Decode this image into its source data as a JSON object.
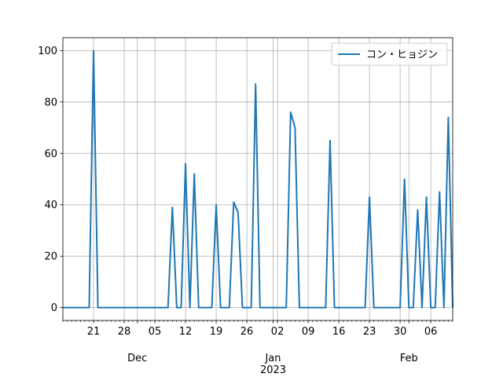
{
  "chart_data": {
    "type": "line",
    "title": "",
    "xlabel": "",
    "ylabel": "",
    "ylim": [
      -5,
      105
    ],
    "xlim": [
      "2022-11-14",
      "2023-02-11"
    ],
    "grid": true,
    "legend_position": "upper right",
    "y_ticks": [
      "0",
      "20",
      "40",
      "60",
      "80",
      "100"
    ],
    "x_tick_labels": [
      {
        "date": "2022-11-21",
        "label": "21"
      },
      {
        "date": "2022-11-28",
        "label": "28"
      },
      {
        "date": "2022-12-05",
        "label": "05"
      },
      {
        "date": "2022-12-12",
        "label": "12"
      },
      {
        "date": "2022-12-19",
        "label": "19"
      },
      {
        "date": "2022-12-26",
        "label": "26"
      },
      {
        "date": "2023-01-02",
        "label": "02"
      },
      {
        "date": "2023-01-09",
        "label": "09"
      },
      {
        "date": "2023-01-16",
        "label": "16"
      },
      {
        "date": "2023-01-23",
        "label": "23"
      },
      {
        "date": "2023-01-30",
        "label": "30"
      },
      {
        "date": "2023-02-06",
        "label": "06"
      }
    ],
    "month_labels": [
      {
        "date": "2022-12-01",
        "label": "Dec"
      },
      {
        "date": "2023-01-01",
        "label": "Jan"
      },
      {
        "date": "2023-02-01",
        "label": "Feb"
      }
    ],
    "year_labels": [
      {
        "date": "2023-01-01",
        "label": "2023"
      }
    ],
    "series": [
      {
        "name": "コン・ヒョジン",
        "color": "#1f77b4",
        "points": [
          [
            "2022-11-14",
            0
          ],
          [
            "2022-11-20",
            0
          ],
          [
            "2022-11-21",
            100
          ],
          [
            "2022-11-22",
            0
          ],
          [
            "2022-12-08",
            0
          ],
          [
            "2022-12-09",
            39
          ],
          [
            "2022-12-10",
            0
          ],
          [
            "2022-12-11",
            0
          ],
          [
            "2022-12-12",
            56
          ],
          [
            "2022-12-13",
            0
          ],
          [
            "2022-12-14",
            52
          ],
          [
            "2022-12-15",
            0
          ],
          [
            "2022-12-18",
            0
          ],
          [
            "2022-12-19",
            40
          ],
          [
            "2022-12-20",
            0
          ],
          [
            "2022-12-22",
            0
          ],
          [
            "2022-12-23",
            41
          ],
          [
            "2022-12-24",
            37
          ],
          [
            "2022-12-25",
            0
          ],
          [
            "2022-12-27",
            0
          ],
          [
            "2022-12-28",
            87
          ],
          [
            "2022-12-29",
            0
          ],
          [
            "2023-01-04",
            0
          ],
          [
            "2023-01-05",
            76
          ],
          [
            "2023-01-06",
            70
          ],
          [
            "2023-01-07",
            0
          ],
          [
            "2023-01-13",
            0
          ],
          [
            "2023-01-14",
            65
          ],
          [
            "2023-01-15",
            0
          ],
          [
            "2023-01-22",
            0
          ],
          [
            "2023-01-23",
            43
          ],
          [
            "2023-01-24",
            0
          ],
          [
            "2023-01-30",
            0
          ],
          [
            "2023-01-31",
            50
          ],
          [
            "2023-02-01",
            0
          ],
          [
            "2023-02-02",
            0
          ],
          [
            "2023-02-03",
            38
          ],
          [
            "2023-02-04",
            0
          ],
          [
            "2023-02-05",
            43
          ],
          [
            "2023-02-06",
            0
          ],
          [
            "2023-02-07",
            0
          ],
          [
            "2023-02-08",
            45
          ],
          [
            "2023-02-09",
            0
          ],
          [
            "2023-02-10",
            74
          ],
          [
            "2023-02-11",
            0
          ]
        ]
      }
    ]
  }
}
